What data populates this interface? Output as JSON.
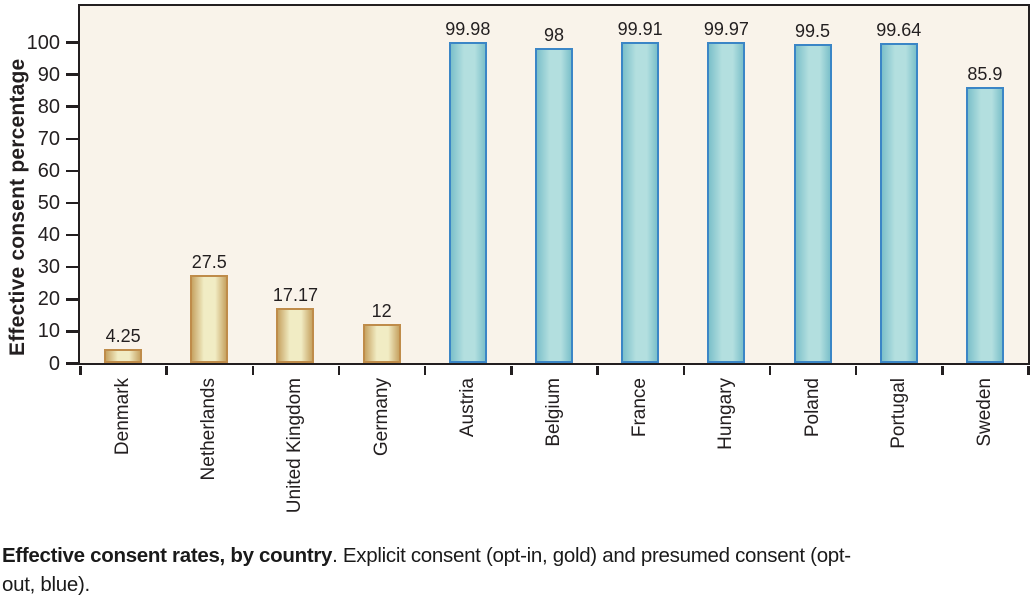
{
  "figure": {
    "y_axis_title": "Effective consent percentage",
    "caption": {
      "bold": "Effective consent rates, by country",
      "line1_rest": ". Explicit consent (opt-in, gold) and presumed consent (opt-",
      "line2": "out, blue)."
    }
  },
  "colors": {
    "plot_bg": "#f9f3ea",
    "axis": "#231f20",
    "text": "#231f20",
    "gold_border": "#bf8c4a",
    "gold_light": "#f1ecc4",
    "gold_dark": "#c7a463",
    "blue_border": "#3b86c6",
    "blue_light": "#b3dfdf",
    "blue_dark": "#7cc0ca"
  },
  "chart_data": {
    "type": "bar",
    "title": "Effective consent rates, by country",
    "xlabel": "",
    "ylabel": "Effective consent percentage",
    "ylim": [
      0,
      111
    ],
    "yticks": [
      0,
      10,
      20,
      30,
      40,
      50,
      60,
      70,
      80,
      90,
      100
    ],
    "grid": false,
    "legend_position": "none",
    "categories": [
      "Denmark",
      "Netherlands",
      "United Kingdom",
      "Germany",
      "Austria",
      "Belgium",
      "France",
      "Hungary",
      "Poland",
      "Portugal",
      "Sweden"
    ],
    "series": [
      {
        "name": "Explicit consent (opt-in, gold)",
        "color": "gold",
        "categories": [
          "Denmark",
          "Netherlands",
          "United Kingdom",
          "Germany"
        ],
        "values": [
          4.25,
          27.5,
          17.17,
          12
        ]
      },
      {
        "name": "Presumed consent (opt-out, blue)",
        "color": "blue",
        "categories": [
          "Austria",
          "Belgium",
          "France",
          "Hungary",
          "Poland",
          "Portugal",
          "Sweden"
        ],
        "values": [
          99.98,
          98,
          99.91,
          99.97,
          99.5,
          99.64,
          85.9
        ]
      }
    ],
    "bars": [
      {
        "country": "Denmark",
        "value": 4.25,
        "label": "4.25",
        "group": "opt-in"
      },
      {
        "country": "Netherlands",
        "value": 27.5,
        "label": "27.5",
        "group": "opt-in"
      },
      {
        "country": "United Kingdom",
        "value": 17.17,
        "label": "17.17",
        "group": "opt-in"
      },
      {
        "country": "Germany",
        "value": 12,
        "label": "12",
        "group": "opt-in"
      },
      {
        "country": "Austria",
        "value": 99.98,
        "label": "99.98",
        "group": "opt-out"
      },
      {
        "country": "Belgium",
        "value": 98,
        "label": "98",
        "group": "opt-out"
      },
      {
        "country": "France",
        "value": 99.91,
        "label": "99.91",
        "group": "opt-out"
      },
      {
        "country": "Hungary",
        "value": 99.97,
        "label": "99.97",
        "group": "opt-out"
      },
      {
        "country": "Poland",
        "value": 99.5,
        "label": "99.5",
        "group": "opt-out"
      },
      {
        "country": "Portugal",
        "value": 99.64,
        "label": "99.64",
        "group": "opt-out"
      },
      {
        "country": "Sweden",
        "value": 85.9,
        "label": "85.9",
        "group": "opt-out"
      }
    ]
  }
}
